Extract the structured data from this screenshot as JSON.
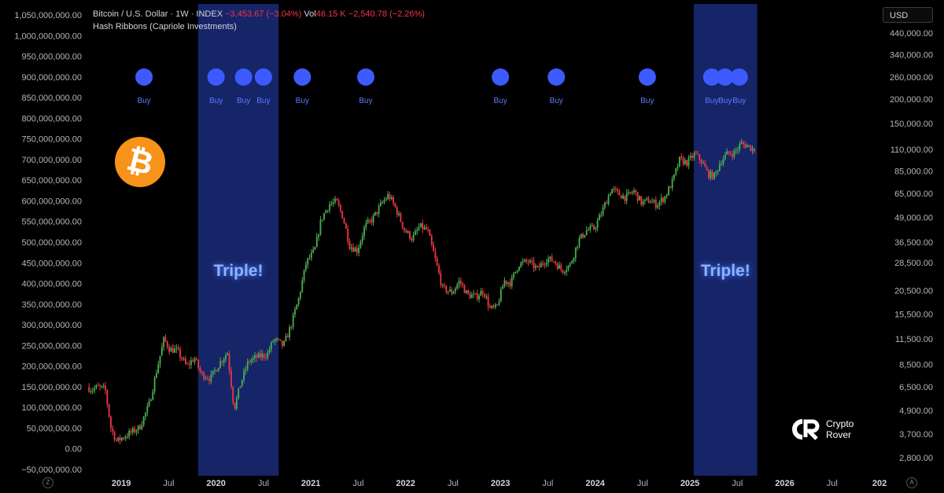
{
  "header": {
    "symbol": "Bitcoin / U.S. Dollar · 1W · INDEX",
    "change": "−3,453.67 (−3.04%)",
    "vol_label": "Vol",
    "vol_value": "46.15 K",
    "vol_change": "−2,540.78 (−2.26%)",
    "indicator": "Hash Ribbons (Capriole Investments)"
  },
  "currency_button": "USD",
  "logo": {
    "line1": "Crypto",
    "line2": "Rover"
  },
  "corner_left": "Z",
  "corner_right": "A",
  "colors": {
    "up": "#4caf50",
    "down": "#f23645",
    "band": "#1a2a7a",
    "buy": "#3d5afe",
    "text": "#b2b5be"
  },
  "chart_data": {
    "type": "candlestick",
    "left_axis": {
      "ticks": [
        "1,050,000,000.00",
        "1,000,000,000.00",
        "950,000,000.00",
        "900,000,000.00",
        "850,000,000.00",
        "800,000,000.00",
        "750,000,000.00",
        "700,000,000.00",
        "650,000,000.00",
        "600,000,000.00",
        "550,000,000.00",
        "500,000,000.00",
        "450,000,000.00",
        "400,000,000.00",
        "350,000,000.00",
        "300,000,000.00",
        "250,000,000.00",
        "200,000,000.00",
        "150,000,000.00",
        "100,000,000.00",
        "50,000,000.00",
        "0.00",
        "−50,000,000.00"
      ]
    },
    "right_axis": {
      "scale": "log",
      "ticks": [
        "440,000.00",
        "340,000.00",
        "260,000.00",
        "200,000.00",
        "150,000.00",
        "110,000.00",
        "85,000.00",
        "65,000.00",
        "49,000.00",
        "36,500.00",
        "28,500.00",
        "20,500.00",
        "15,500.00",
        "11,500.00",
        "8,500.00",
        "6,500.00",
        "4,900.00",
        "3,700.00",
        "2,800.00"
      ],
      "values": [
        440000,
        340000,
        260000,
        200000,
        150000,
        110000,
        85000,
        65000,
        49000,
        36500,
        28500,
        20500,
        15500,
        11500,
        8500,
        6500,
        4900,
        3700,
        2800
      ],
      "range": [
        2300,
        600000
      ]
    },
    "x_axis": {
      "range": [
        2018.65,
        2026.95
      ],
      "ticks": [
        {
          "label": "2019",
          "t": 2019.0,
          "bold": true
        },
        {
          "label": "Jul",
          "t": 2019.5,
          "bold": false
        },
        {
          "label": "2020",
          "t": 2020.0,
          "bold": true
        },
        {
          "label": "Jul",
          "t": 2020.5,
          "bold": false
        },
        {
          "label": "2021",
          "t": 2021.0,
          "bold": true
        },
        {
          "label": "Jul",
          "t": 2021.5,
          "bold": false
        },
        {
          "label": "2022",
          "t": 2022.0,
          "bold": true
        },
        {
          "label": "Jul",
          "t": 2022.5,
          "bold": false
        },
        {
          "label": "2023",
          "t": 2023.0,
          "bold": true
        },
        {
          "label": "Jul",
          "t": 2023.5,
          "bold": false
        },
        {
          "label": "2024",
          "t": 2024.0,
          "bold": true
        },
        {
          "label": "Jul",
          "t": 2024.5,
          "bold": false
        },
        {
          "label": "2025",
          "t": 2025.0,
          "bold": true
        },
        {
          "label": "Jul",
          "t": 2025.5,
          "bold": false
        },
        {
          "label": "2026",
          "t": 2026.0,
          "bold": true
        },
        {
          "label": "Jul",
          "t": 2026.5,
          "bold": false
        },
        {
          "label": "202",
          "t": 2027.0,
          "bold": true
        }
      ]
    },
    "bands": [
      {
        "start": 2019.81,
        "end": 2020.66,
        "label": "Triple!"
      },
      {
        "start": 2025.04,
        "end": 2025.71,
        "label": "Triple!"
      }
    ],
    "buy_signals": [
      {
        "t": 2019.24,
        "label": "Buy"
      },
      {
        "t": 2020.0,
        "label": "Buy"
      },
      {
        "t": 2020.29,
        "label": "Buy"
      },
      {
        "t": 2020.5,
        "label": "Buy"
      },
      {
        "t": 2020.91,
        "label": "Buy"
      },
      {
        "t": 2021.58,
        "label": "Buy"
      },
      {
        "t": 2023.0,
        "label": "Buy"
      },
      {
        "t": 2023.59,
        "label": "Buy"
      },
      {
        "t": 2024.55,
        "label": "Buy"
      },
      {
        "t": 2025.23,
        "label": "Buy"
      },
      {
        "t": 2025.37,
        "label": "Buy"
      },
      {
        "t": 2025.52,
        "label": "Buy"
      }
    ],
    "price_path": [
      [
        2018.65,
        6500
      ],
      [
        2018.7,
        6300
      ],
      [
        2018.76,
        6500
      ],
      [
        2018.84,
        6300
      ],
      [
        2018.9,
        4000
      ],
      [
        2018.96,
        3400
      ],
      [
        2019.04,
        3600
      ],
      [
        2019.12,
        3800
      ],
      [
        2019.2,
        4000
      ],
      [
        2019.3,
        5200
      ],
      [
        2019.38,
        7800
      ],
      [
        2019.46,
        11500
      ],
      [
        2019.52,
        10200
      ],
      [
        2019.6,
        10000
      ],
      [
        2019.7,
        8300
      ],
      [
        2019.78,
        9200
      ],
      [
        2019.85,
        7600
      ],
      [
        2019.95,
        7200
      ],
      [
        2020.05,
        8700
      ],
      [
        2020.13,
        9800
      ],
      [
        2020.2,
        5000
      ],
      [
        2020.27,
        6800
      ],
      [
        2020.35,
        8800
      ],
      [
        2020.45,
        9300
      ],
      [
        2020.55,
        9600
      ],
      [
        2020.62,
        11500
      ],
      [
        2020.72,
        10600
      ],
      [
        2020.8,
        13500
      ],
      [
        2020.88,
        18500
      ],
      [
        2020.96,
        28500
      ],
      [
        2021.05,
        33000
      ],
      [
        2021.12,
        48000
      ],
      [
        2021.2,
        57000
      ],
      [
        2021.28,
        59000
      ],
      [
        2021.35,
        49000
      ],
      [
        2021.42,
        35000
      ],
      [
        2021.5,
        33000
      ],
      [
        2021.58,
        44000
      ],
      [
        2021.66,
        48000
      ],
      [
        2021.75,
        57000
      ],
      [
        2021.83,
        64000
      ],
      [
        2021.9,
        55000
      ],
      [
        2022.0,
        42000
      ],
      [
        2022.08,
        38000
      ],
      [
        2022.16,
        44000
      ],
      [
        2022.24,
        42000
      ],
      [
        2022.32,
        30000
      ],
      [
        2022.4,
        21000
      ],
      [
        2022.5,
        20000
      ],
      [
        2022.58,
        23000
      ],
      [
        2022.66,
        19500
      ],
      [
        2022.75,
        19000
      ],
      [
        2022.83,
        20500
      ],
      [
        2022.9,
        16500
      ],
      [
        2022.97,
        16600
      ],
      [
        2023.05,
        23000
      ],
      [
        2023.12,
        22500
      ],
      [
        2023.2,
        28000
      ],
      [
        2023.3,
        29000
      ],
      [
        2023.4,
        26500
      ],
      [
        2023.5,
        30000
      ],
      [
        2023.58,
        29000
      ],
      [
        2023.66,
        26000
      ],
      [
        2023.75,
        28000
      ],
      [
        2023.83,
        37000
      ],
      [
        2023.92,
        42000
      ],
      [
        2024.0,
        43000
      ],
      [
        2024.08,
        52000
      ],
      [
        2024.18,
        69000
      ],
      [
        2024.25,
        65000
      ],
      [
        2024.33,
        62000
      ],
      [
        2024.42,
        67000
      ],
      [
        2024.5,
        58000
      ],
      [
        2024.58,
        60000
      ],
      [
        2024.66,
        57000
      ],
      [
        2024.75,
        63000
      ],
      [
        2024.83,
        76000
      ],
      [
        2024.9,
        97000
      ],
      [
        2024.98,
        94000
      ],
      [
        2025.06,
        104000
      ],
      [
        2025.13,
        96000
      ],
      [
        2025.2,
        82000
      ],
      [
        2025.27,
        80000
      ],
      [
        2025.33,
        95000
      ],
      [
        2025.4,
        104000
      ],
      [
        2025.48,
        106000
      ],
      [
        2025.55,
        118000
      ],
      [
        2025.62,
        115000
      ],
      [
        2025.68,
        110000
      ]
    ]
  }
}
